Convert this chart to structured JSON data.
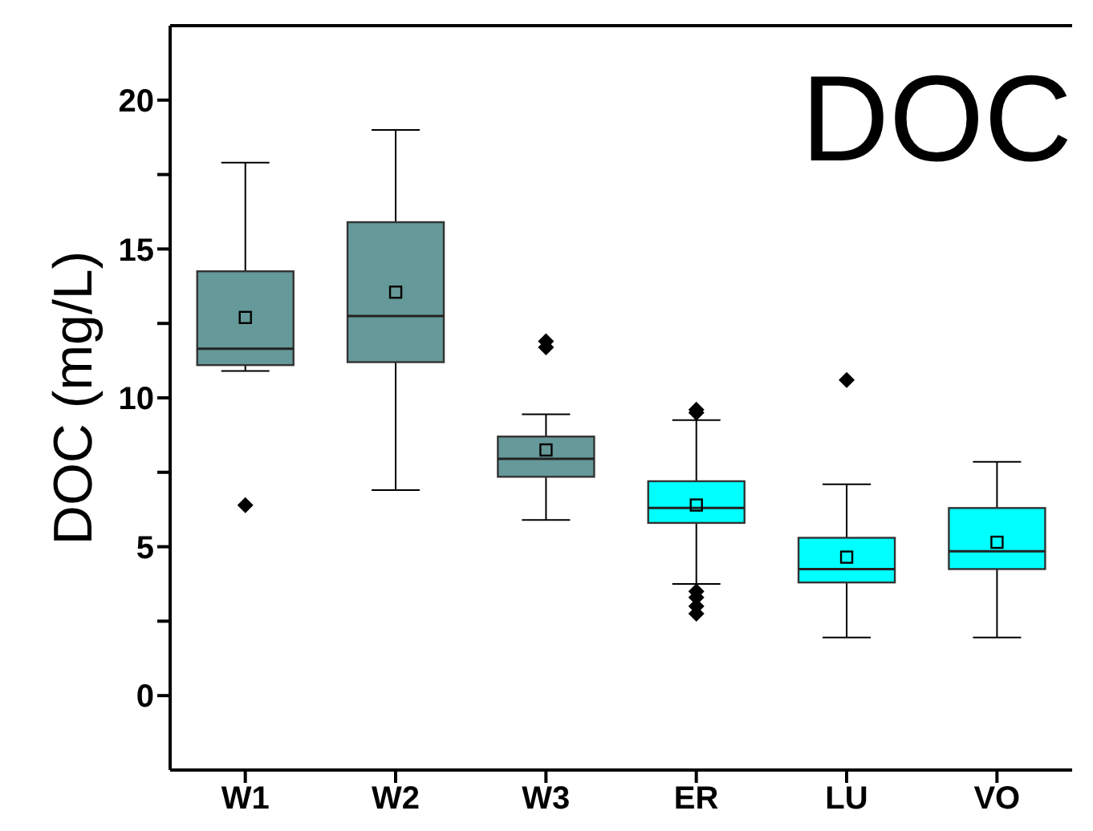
{
  "chart_data": {
    "type": "box",
    "title": "DOC",
    "ylabel": "DOC (mg/L)",
    "categories": [
      "W1",
      "W2",
      "W3",
      "ER",
      "LU",
      "VO"
    ],
    "colors": [
      "#669999",
      "#669999",
      "#669999",
      "#00ffff",
      "#00ffff",
      "#00ffff"
    ],
    "boxes": [
      {
        "low": 10.9,
        "q1": 11.1,
        "median": 11.65,
        "q3": 14.25,
        "high": 17.9,
        "mean": 12.7,
        "outliers": [
          6.4
        ]
      },
      {
        "low": 6.9,
        "q1": 11.2,
        "median": 12.75,
        "q3": 15.9,
        "high": 19.0,
        "mean": 13.55
      },
      {
        "low": 5.9,
        "q1": 7.35,
        "median": 7.95,
        "q3": 8.7,
        "high": 9.45,
        "mean": 8.25,
        "outliers": [
          11.9,
          11.7
        ]
      },
      {
        "low": 3.75,
        "q1": 5.8,
        "median": 6.3,
        "q3": 7.2,
        "high": 9.25,
        "mean": 6.4,
        "outliers": [
          9.6,
          9.5,
          3.5,
          3.3,
          3.0,
          2.75
        ]
      },
      {
        "low": 1.95,
        "q1": 3.8,
        "median": 4.25,
        "q3": 5.3,
        "high": 7.1,
        "mean": 4.65,
        "outliers": [
          10.6
        ]
      },
      {
        "low": 1.95,
        "q1": 4.25,
        "median": 4.85,
        "q3": 6.3,
        "high": 7.85,
        "mean": 5.15
      }
    ],
    "ylim": [
      -2.5,
      22.5
    ],
    "yticks": [
      0,
      {
        "value": 2.5,
        "label": null
      },
      5,
      {
        "value": 7.5,
        "label": null
      },
      10,
      {
        "value": 12.5,
        "label": null
      },
      15,
      {
        "value": 17.5,
        "label": null
      },
      20
    ],
    "grid": false
  }
}
